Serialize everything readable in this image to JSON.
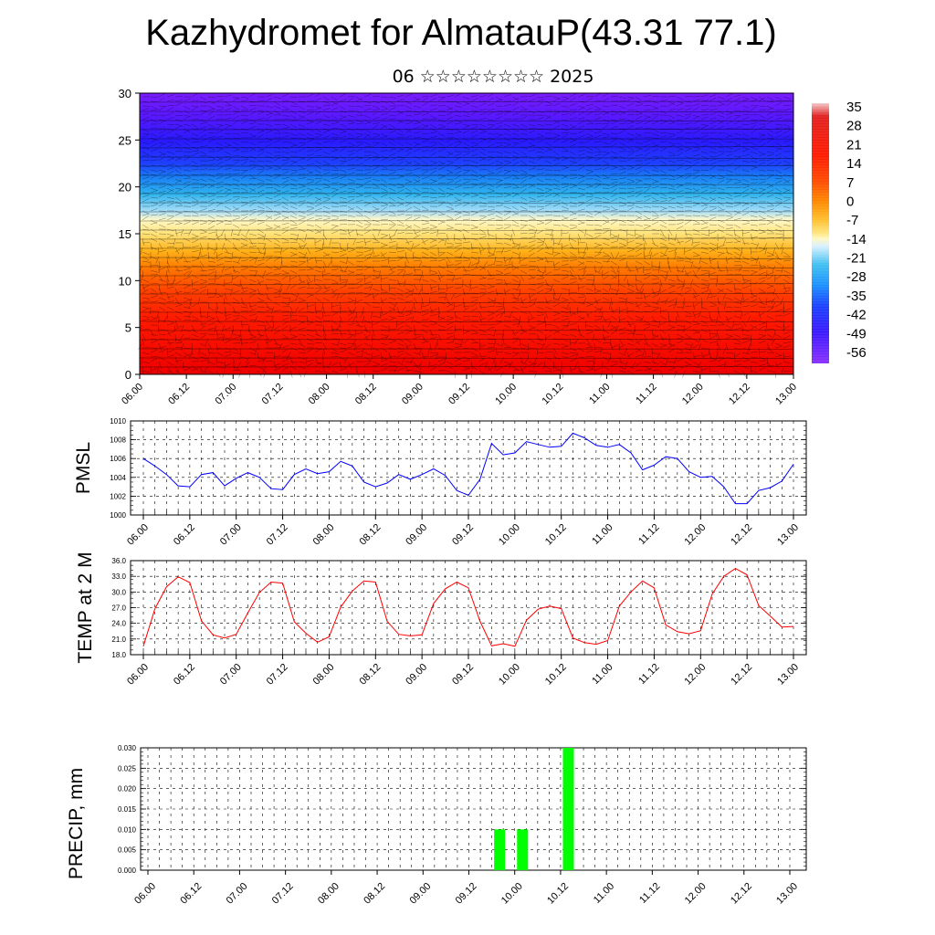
{
  "title": "Kazhydromet for AlmatauP(43.31 77.1)",
  "subtitle": "06 ☆☆☆☆☆☆☆☆ 2025",
  "chart_data": [
    {
      "type": "heatmap",
      "title": "",
      "ylim": [
        0,
        30
      ],
      "y_ticks": [
        "0",
        "5",
        "10",
        "15",
        "20",
        "25",
        "30"
      ],
      "x_ticks": [
        "06.00",
        "06.12",
        "07.00",
        "07.12",
        "08.00",
        "08.12",
        "09.00",
        "09.12",
        "10.00",
        "10.12",
        "11.00",
        "11.12",
        "12.00",
        "12.12",
        "13.00"
      ],
      "colorbar_labels": [
        "35",
        "28",
        "21",
        "14",
        "7",
        "0",
        "-7",
        "-14",
        "-21",
        "-28",
        "-35",
        "-42",
        "-49",
        "-56"
      ],
      "colors": [
        "#f2c4c4",
        "#e50000",
        "#ff2a00",
        "#ff6a00",
        "#ffb000",
        "#ffe680",
        "#fff4b0",
        "#c8ecff",
        "#26b4f0",
        "#1060ff",
        "#2a1aff",
        "#6a18ff",
        "#9f40ff"
      ]
    },
    {
      "type": "line",
      "ylabel": "PMSL",
      "ylim": [
        1000,
        1010
      ],
      "y_ticks": [
        "1000",
        "1002",
        "1004",
        "1006",
        "1008",
        "1010"
      ],
      "x_ticks": [
        "06.00",
        "06.12",
        "07.00",
        "07.12",
        "08.00",
        "08.12",
        "09.00",
        "09.12",
        "10.00",
        "10.12",
        "11.00",
        "11.12",
        "12.00",
        "12.12",
        "13.00"
      ],
      "color": "#0000ff",
      "values": [
        1006.0,
        1005.2,
        1004.3,
        1003.1,
        1003.0,
        1004.3,
        1004.5,
        1003.1,
        1003.9,
        1004.5,
        1004.0,
        1002.8,
        1002.7,
        1004.3,
        1004.9,
        1004.4,
        1004.6,
        1005.7,
        1005.2,
        1003.5,
        1003.0,
        1003.4,
        1004.3,
        1003.8,
        1004.3,
        1004.9,
        1004.2,
        1002.6,
        1002.1,
        1003.8,
        1007.6,
        1006.4,
        1006.6,
        1007.8,
        1007.5,
        1007.2,
        1007.3,
        1008.7,
        1008.2,
        1007.4,
        1007.2,
        1007.5,
        1006.6,
        1004.8,
        1005.3,
        1006.2,
        1006.0,
        1004.6,
        1004.0,
        1004.1,
        1003.0,
        1001.2,
        1001.2,
        1002.6,
        1002.9,
        1003.6,
        1005.4
      ]
    },
    {
      "type": "line",
      "ylabel": "TEMP at 2 M",
      "ylim": [
        18,
        36
      ],
      "y_ticks": [
        "18.0",
        "21.0",
        "24.0",
        "27.0",
        "30.0",
        "33.0",
        "36.0"
      ],
      "x_ticks": [
        "06.00",
        "06.12",
        "07.00",
        "07.12",
        "08.00",
        "08.12",
        "09.00",
        "09.12",
        "10.00",
        "10.12",
        "11.00",
        "11.12",
        "12.00",
        "12.12",
        "13.00"
      ],
      "color": "#ff0000",
      "values": [
        19.6,
        26.8,
        31.0,
        32.9,
        31.8,
        24.5,
        21.8,
        21.2,
        21.9,
        26.0,
        29.9,
        31.9,
        31.7,
        24.3,
        22.1,
        20.4,
        21.4,
        27.1,
        30.2,
        32.1,
        31.9,
        24.4,
        21.9,
        21.6,
        21.8,
        27.8,
        30.6,
        31.9,
        30.8,
        24.4,
        19.7,
        20.1,
        19.6,
        24.6,
        26.7,
        27.3,
        26.8,
        21.2,
        20.3,
        20.0,
        20.7,
        27.3,
        30.0,
        32.1,
        30.8,
        23.7,
        22.4,
        22.0,
        22.6,
        29.6,
        33.0,
        34.5,
        33.3,
        27.4,
        25.4,
        23.3,
        23.4
      ]
    },
    {
      "type": "bar",
      "ylabel": "PRECIP, mm",
      "ylim": [
        0,
        0.03
      ],
      "y_ticks": [
        "0.000",
        "0.005",
        "0.010",
        "0.015",
        "0.020",
        "0.025",
        "0.030"
      ],
      "x_ticks": [
        "06.00",
        "06.12",
        "07.00",
        "07.12",
        "08.00",
        "08.12",
        "09.00",
        "09.12",
        "10.00",
        "10.12",
        "11.00",
        "11.12",
        "12.00",
        "12.12",
        "13.00"
      ],
      "color": "#00ff00",
      "bars": [
        {
          "index": 31,
          "value": 0.01
        },
        {
          "index": 33,
          "value": 0.01
        },
        {
          "index": 37,
          "value": 0.03
        }
      ]
    }
  ]
}
